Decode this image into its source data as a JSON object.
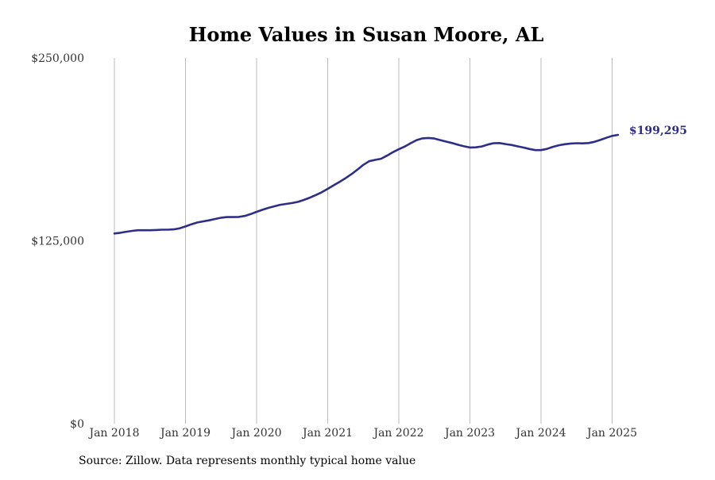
{
  "chart_data": {
    "type": "line",
    "title": "Home Values in Susan Moore, AL",
    "xlabel": "",
    "ylabel": "",
    "ylim": [
      0,
      250000
    ],
    "y_ticks": [
      {
        "value": 0,
        "label": "$0"
      },
      {
        "value": 125000,
        "label": "$125,000"
      },
      {
        "value": 250000,
        "label": "$250,000"
      }
    ],
    "x_ticks": [
      {
        "value": 2018.0,
        "label": "Jan 2018"
      },
      {
        "value": 2019.0,
        "label": "Jan 2019"
      },
      {
        "value": 2020.0,
        "label": "Jan 2020"
      },
      {
        "value": 2021.0,
        "label": "Jan 2021"
      },
      {
        "value": 2022.0,
        "label": "Jan 2022"
      },
      {
        "value": 2023.0,
        "label": "Jan 2023"
      },
      {
        "value": 2024.0,
        "label": "Jan 2024"
      },
      {
        "value": 2025.0,
        "label": "Jan 2025"
      }
    ],
    "xlim": [
      2018.0,
      2025.083
    ],
    "grid": {
      "vertical": true,
      "horizontal": false
    },
    "series": [
      {
        "color": "#2e2e8a",
        "x": [
          2018.0,
          2018.083,
          2018.167,
          2018.25,
          2018.333,
          2018.417,
          2018.5,
          2018.583,
          2018.667,
          2018.75,
          2018.833,
          2018.917,
          2019.0,
          2019.083,
          2019.167,
          2019.25,
          2019.333,
          2019.417,
          2019.5,
          2019.583,
          2019.667,
          2019.75,
          2019.833,
          2019.917,
          2020.0,
          2020.083,
          2020.167,
          2020.25,
          2020.333,
          2020.417,
          2020.5,
          2020.583,
          2020.667,
          2020.75,
          2020.833,
          2020.917,
          2021.0,
          2021.083,
          2021.167,
          2021.25,
          2021.333,
          2021.417,
          2021.5,
          2021.583,
          2021.667,
          2021.75,
          2021.833,
          2021.917,
          2022.0,
          2022.083,
          2022.167,
          2022.25,
          2022.333,
          2022.417,
          2022.5,
          2022.583,
          2022.667,
          2022.75,
          2022.833,
          2022.917,
          2023.0,
          2023.083,
          2023.167,
          2023.25,
          2023.333,
          2023.417,
          2023.5,
          2023.583,
          2023.667,
          2023.75,
          2023.833,
          2023.917,
          2024.0,
          2024.083,
          2024.167,
          2024.25,
          2024.333,
          2024.417,
          2024.5,
          2024.583,
          2024.667,
          2024.75,
          2024.833,
          2024.917,
          2025.0,
          2025.083
        ],
        "values": [
          130000,
          130500,
          131200,
          131800,
          132200,
          132200,
          132200,
          132400,
          132600,
          132600,
          132800,
          133500,
          134800,
          136300,
          137500,
          138300,
          139000,
          139900,
          140800,
          141200,
          141200,
          141300,
          142000,
          143300,
          144800,
          146200,
          147500,
          148600,
          149600,
          150200,
          150800,
          151600,
          153000,
          154500,
          156300,
          158200,
          160500,
          162900,
          165300,
          167800,
          170500,
          173600,
          176900,
          179400,
          180300,
          181100,
          183200,
          185600,
          187600,
          189400,
          191700,
          193800,
          195000,
          195300,
          194900,
          193800,
          192800,
          191800,
          190600,
          189600,
          188800,
          188900,
          189500,
          190800,
          191700,
          191800,
          191100,
          190500,
          189600,
          188800,
          187800,
          187000,
          187000,
          187800,
          189200,
          190300,
          191000,
          191500,
          191700,
          191600,
          191800,
          192600,
          193900,
          195400,
          196700,
          197400
        ],
        "end_label": "$199,295"
      }
    ]
  },
  "source_text": "Source: Zillow. Data represents monthly typical home value"
}
